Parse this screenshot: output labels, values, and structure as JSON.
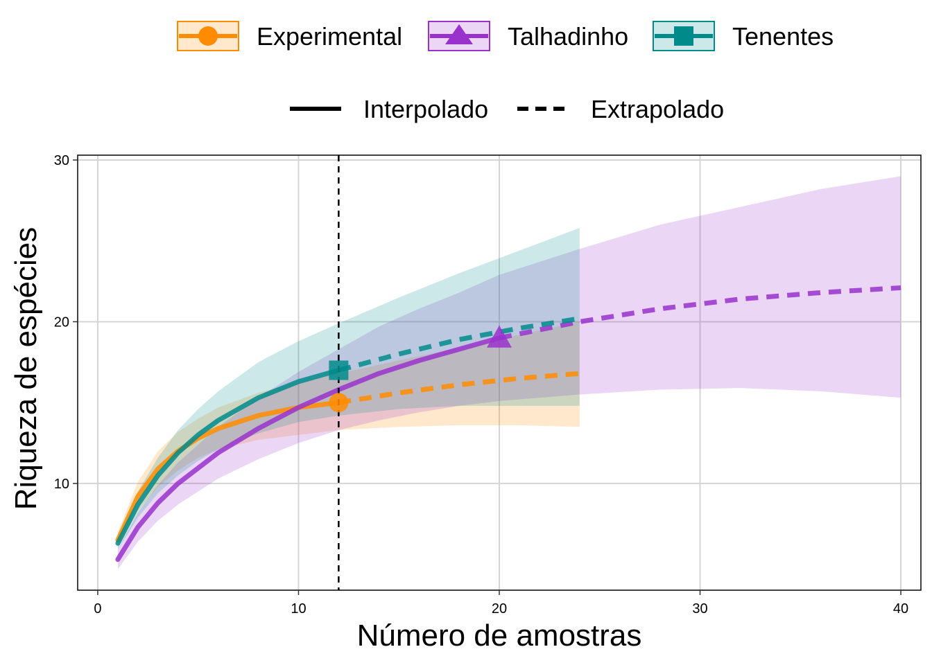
{
  "chart_data": {
    "type": "line",
    "xlabel": "Número de amostras",
    "ylabel": "Riqueza de espécies",
    "xlim": [
      -1,
      41
    ],
    "ylim": [
      3.4,
      30.3
    ],
    "x_ticks": [
      0,
      10,
      20,
      30,
      40
    ],
    "y_ticks": [
      10,
      20,
      30
    ],
    "x_tick_labels": [
      "0",
      "10",
      "20",
      "30",
      "40"
    ],
    "y_tick_labels": [
      "10",
      "20",
      "30"
    ],
    "grid": true,
    "legend_position": "top",
    "reference_line_x": 12,
    "linetype_legend": [
      {
        "label": "Interpolado",
        "style": "solid"
      },
      {
        "label": "Extrapolado",
        "style": "dashed"
      }
    ],
    "series": [
      {
        "name": "Experimental",
        "color": "#FF8C00",
        "marker": "circle",
        "observed": {
          "x": 12,
          "y": 15
        },
        "x": [
          1,
          2,
          3,
          4,
          5,
          6,
          8,
          10,
          12,
          15,
          18,
          21,
          24
        ],
        "y": [
          6.5,
          9.2,
          10.9,
          12.0,
          12.8,
          13.4,
          14.2,
          14.7,
          15.0,
          15.6,
          16.1,
          16.5,
          16.8
        ],
        "lower": [
          6.0,
          8.3,
          9.8,
          10.8,
          11.6,
          12.1,
          12.7,
          13.0,
          13.3,
          13.5,
          13.6,
          13.6,
          13.5
        ],
        "upper": [
          7.0,
          10.1,
          12.0,
          13.2,
          14.0,
          14.7,
          15.6,
          16.3,
          16.8,
          17.6,
          18.4,
          19.2,
          20.0
        ]
      },
      {
        "name": "Talhadinho",
        "color": "#9932CC",
        "marker": "triangle",
        "observed": {
          "x": 20,
          "y": 19
        },
        "x": [
          1,
          2,
          3,
          4,
          6,
          8,
          10,
          12,
          14,
          16,
          18,
          20,
          24,
          28,
          32,
          36,
          40
        ],
        "y": [
          5.3,
          7.3,
          8.8,
          10.0,
          11.9,
          13.4,
          14.7,
          15.8,
          16.8,
          17.6,
          18.3,
          19.0,
          20.0,
          20.8,
          21.4,
          21.8,
          22.1
        ],
        "lower": [
          4.7,
          6.4,
          7.7,
          8.7,
          10.3,
          11.5,
          12.5,
          13.3,
          13.9,
          14.4,
          14.8,
          15.1,
          15.5,
          15.8,
          15.9,
          15.7,
          15.3
        ],
        "upper": [
          5.9,
          8.2,
          9.9,
          11.3,
          13.5,
          15.3,
          16.9,
          18.3,
          19.7,
          20.8,
          21.8,
          22.9,
          24.5,
          26.0,
          27.1,
          28.2,
          29.0
        ]
      },
      {
        "name": "Tenentes",
        "color": "#008B8B",
        "marker": "square",
        "observed": {
          "x": 12,
          "y": 17
        },
        "x": [
          1,
          2,
          3,
          4,
          5,
          6,
          8,
          10,
          12,
          15,
          18,
          21,
          24
        ],
        "y": [
          6.3,
          8.7,
          10.5,
          11.9,
          13.0,
          13.9,
          15.3,
          16.3,
          17.0,
          18.0,
          18.9,
          19.6,
          20.2
        ],
        "lower": [
          5.9,
          7.9,
          9.4,
          10.5,
          11.4,
          12.1,
          13.1,
          13.8,
          14.2,
          14.6,
          14.8,
          14.8,
          14.8
        ],
        "upper": [
          6.7,
          9.5,
          11.6,
          13.3,
          14.6,
          15.7,
          17.5,
          18.8,
          19.9,
          21.5,
          23.0,
          24.4,
          25.8
        ]
      }
    ]
  }
}
